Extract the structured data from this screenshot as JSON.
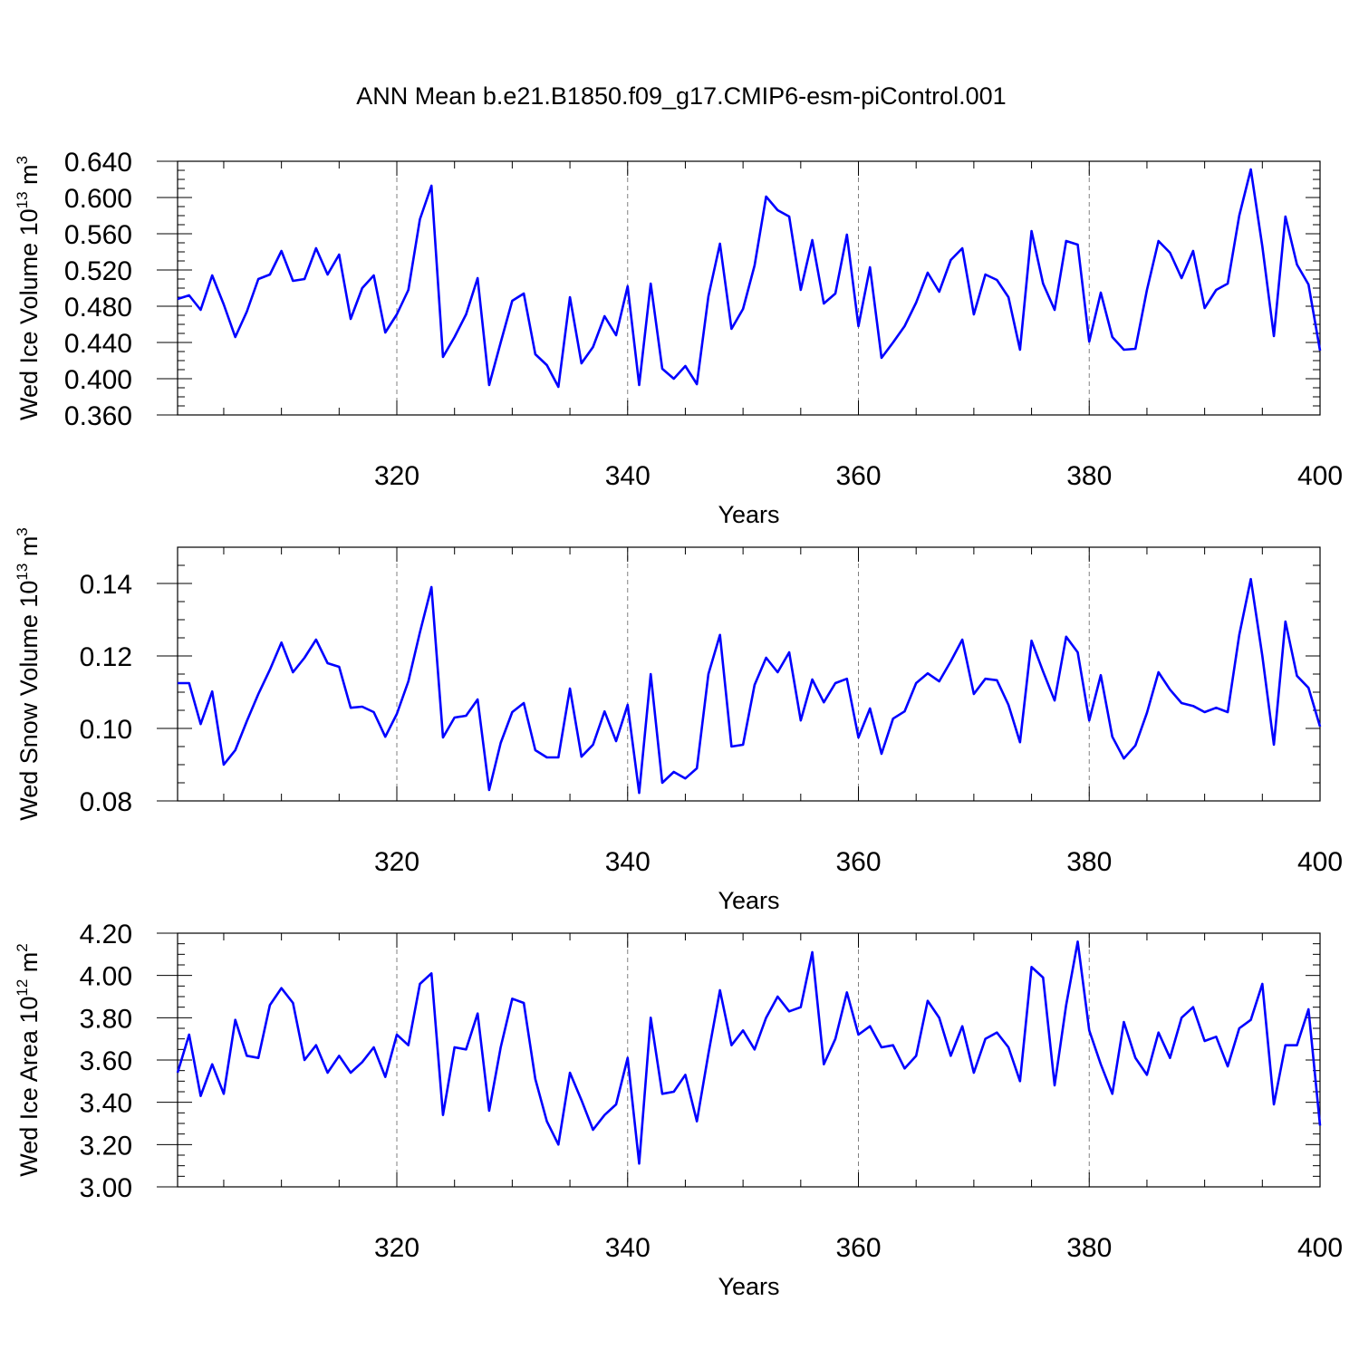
{
  "title": "ANN Mean b.e21.B1850.f09_g17.CMIP6-esm-piControl.001",
  "colors": {
    "line": "#0000ff",
    "axis": "#000000",
    "grid": "#808080",
    "background": "#ffffff"
  },
  "chart_data": [
    {
      "type": "line",
      "title": "ANN Mean b.e21.B1850.f09_g17.CMIP6-esm-piControl.001",
      "xlabel": "Years",
      "ylabel": {
        "text": "Wed Ice Volume 10",
        "exponent": "13",
        "unit": "m",
        "unit_exponent": "3"
      },
      "xlim": [
        301,
        400
      ],
      "ylim": [
        0.36,
        0.64
      ],
      "xticks": [
        320,
        340,
        360,
        380,
        400
      ],
      "xtick_labels": [
        "320",
        "340",
        "360",
        "380",
        "400"
      ],
      "yticks": [
        0.36,
        0.4,
        0.44,
        0.48,
        0.52,
        0.56,
        0.6,
        0.64
      ],
      "ytick_labels": [
        "0.360",
        "0.400",
        "0.440",
        "0.480",
        "0.520",
        "0.560",
        "0.600",
        "0.640"
      ],
      "grid": "vertical dashed at major x ticks",
      "series": [
        {
          "x_start": 301,
          "values": [
            0.488,
            0.492,
            0.476,
            0.514,
            0.482,
            0.446,
            0.474,
            0.51,
            0.515,
            0.541,
            0.508,
            0.51,
            0.544,
            0.515,
            0.537,
            0.466,
            0.5,
            0.514,
            0.451,
            0.471,
            0.498,
            0.576,
            0.613,
            0.424,
            0.446,
            0.471,
            0.511,
            0.393,
            0.44,
            0.486,
            0.494,
            0.427,
            0.415,
            0.391,
            0.49,
            0.417,
            0.435,
            0.469,
            0.448,
            0.502,
            0.393,
            0.505,
            0.411,
            0.4,
            0.414,
            0.394,
            0.491,
            0.549,
            0.455,
            0.477,
            0.525,
            0.601,
            0.586,
            0.579,
            0.498,
            0.553,
            0.483,
            0.494,
            0.559,
            0.458,
            0.523,
            0.423,
            0.44,
            0.458,
            0.484,
            0.517,
            0.496,
            0.531,
            0.544,
            0.471,
            0.515,
            0.509,
            0.49,
            0.432,
            0.563,
            0.505,
            0.476,
            0.552,
            0.548,
            0.441,
            0.495,
            0.446,
            0.432,
            0.433,
            0.498,
            0.552,
            0.539,
            0.511,
            0.541,
            0.478,
            0.498,
            0.505,
            0.58,
            0.631,
            0.546,
            0.447,
            0.579,
            0.526,
            0.504,
            0.431
          ]
        }
      ]
    },
    {
      "type": "line",
      "xlabel": "Years",
      "ylabel": {
        "text": "Wed Snow Volume 10",
        "exponent": "13",
        "unit": "m",
        "unit_exponent": "3"
      },
      "xlim": [
        301,
        400
      ],
      "ylim": [
        0.08,
        0.15
      ],
      "xticks": [
        320,
        340,
        360,
        380,
        400
      ],
      "xtick_labels": [
        "320",
        "340",
        "360",
        "380",
        "400"
      ],
      "yticks": [
        0.08,
        0.1,
        0.12,
        0.14
      ],
      "ytick_labels": [
        "0.08",
        "0.10",
        "0.12",
        "0.14"
      ],
      "grid": "vertical dashed at major x ticks",
      "series": [
        {
          "x_start": 301,
          "values": [
            0.1125,
            0.1125,
            0.1012,
            0.1102,
            0.09,
            0.094,
            0.102,
            0.1095,
            0.1162,
            0.1237,
            0.1155,
            0.1195,
            0.1245,
            0.118,
            0.117,
            0.1057,
            0.106,
            0.1045,
            0.0977,
            0.104,
            0.113,
            0.1265,
            0.139,
            0.0975,
            0.103,
            0.1035,
            0.108,
            0.083,
            0.096,
            0.1045,
            0.107,
            0.094,
            0.092,
            0.092,
            0.111,
            0.0922,
            0.0955,
            0.1047,
            0.0965,
            0.1065,
            0.0822,
            0.115,
            0.085,
            0.088,
            0.0862,
            0.089,
            0.115,
            0.1258,
            0.095,
            0.0955,
            0.112,
            0.1195,
            0.1155,
            0.121,
            0.1022,
            0.1135,
            0.1072,
            0.1125,
            0.1137,
            0.0975,
            0.1055,
            0.093,
            0.1027,
            0.1047,
            0.1125,
            0.1152,
            0.113,
            0.1185,
            0.1245,
            0.1095,
            0.1137,
            0.1133,
            0.1065,
            0.0962,
            0.1242,
            0.1157,
            0.1077,
            0.1253,
            0.121,
            0.1022,
            0.1147,
            0.0977,
            0.0917,
            0.0953,
            0.1043,
            0.1155,
            0.1107,
            0.107,
            0.1062,
            0.1045,
            0.1057,
            0.1045,
            0.1258,
            0.1412,
            0.12,
            0.0955,
            0.1295,
            0.1145,
            0.1112,
            0.1005
          ]
        }
      ]
    },
    {
      "type": "line",
      "xlabel": "Years",
      "ylabel": {
        "text": "Wed Ice Area 10",
        "exponent": "12",
        "unit": "m",
        "unit_exponent": "2"
      },
      "xlim": [
        301,
        400
      ],
      "ylim": [
        3.0,
        4.2
      ],
      "xticks": [
        320,
        340,
        360,
        380,
        400
      ],
      "xtick_labels": [
        "320",
        "340",
        "360",
        "380",
        "400"
      ],
      "yticks": [
        3.0,
        3.2,
        3.4,
        3.6,
        3.8,
        4.0,
        4.2
      ],
      "ytick_labels": [
        "3.00",
        "3.20",
        "3.40",
        "3.60",
        "3.80",
        "4.00",
        "4.20"
      ],
      "grid": "vertical dashed at major x ticks",
      "series": [
        {
          "x_start": 301,
          "values": [
            3.54,
            3.72,
            3.43,
            3.58,
            3.44,
            3.79,
            3.62,
            3.61,
            3.86,
            3.94,
            3.87,
            3.6,
            3.67,
            3.54,
            3.62,
            3.54,
            3.59,
            3.66,
            3.52,
            3.72,
            3.67,
            3.96,
            4.01,
            3.34,
            3.66,
            3.65,
            3.82,
            3.36,
            3.66,
            3.89,
            3.87,
            3.51,
            3.31,
            3.2,
            3.54,
            3.41,
            3.27,
            3.34,
            3.39,
            3.61,
            3.11,
            3.8,
            3.44,
            3.45,
            3.53,
            3.31,
            3.63,
            3.93,
            3.67,
            3.74,
            3.65,
            3.8,
            3.9,
            3.83,
            3.85,
            4.11,
            3.58,
            3.7,
            3.92,
            3.72,
            3.76,
            3.66,
            3.67,
            3.56,
            3.62,
            3.88,
            3.8,
            3.62,
            3.76,
            3.54,
            3.7,
            3.73,
            3.66,
            3.5,
            4.04,
            3.99,
            3.48,
            3.86,
            4.16,
            3.74,
            3.58,
            3.44,
            3.78,
            3.61,
            3.53,
            3.73,
            3.61,
            3.8,
            3.85,
            3.69,
            3.71,
            3.57,
            3.75,
            3.79,
            3.96,
            3.39,
            3.67,
            3.67,
            3.84,
            3.29
          ]
        }
      ]
    }
  ]
}
